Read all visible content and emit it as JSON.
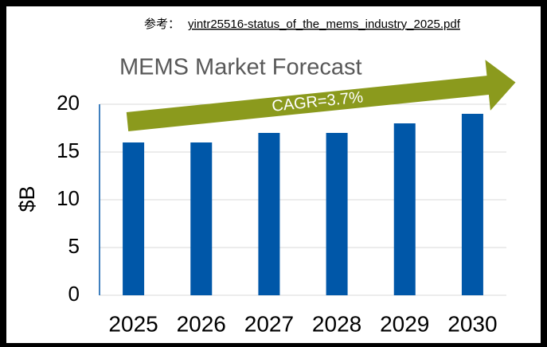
{
  "chart_data": {
    "type": "bar",
    "note_prefix": "参考：",
    "note_link": "yintr25516-status_of_the_mems_industry_2025.pdf",
    "title": "MEMS Market Forecast",
    "y_label": "$B",
    "annotation": "CAGR=3.7%",
    "annotation_color": "#8b9a1d",
    "categories": [
      "2025",
      "2026",
      "2027",
      "2028",
      "2029",
      "2030"
    ],
    "values": [
      16,
      16,
      17,
      17,
      18,
      19
    ],
    "color": "#0057a8",
    "ylim": [
      0,
      20
    ],
    "yticks": [
      0,
      5,
      10,
      15,
      20
    ],
    "grid": true
  }
}
